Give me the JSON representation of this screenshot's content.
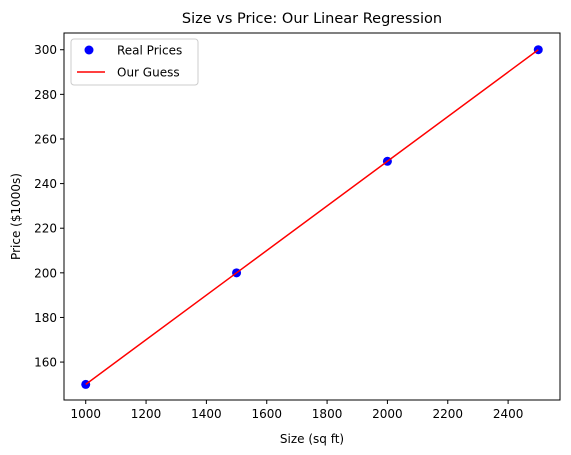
{
  "chart_data": {
    "type": "scatter",
    "title": "Size vs Price: Our Linear Regression",
    "xlabel": "Size (sq ft)",
    "ylabel": "Price ($1000s)",
    "xlim": [
      928,
      2572
    ],
    "ylim": [
      143,
      307.5
    ],
    "xticks": [
      1000,
      1200,
      1400,
      1600,
      1800,
      2000,
      2200,
      2400
    ],
    "yticks": [
      160,
      180,
      200,
      220,
      240,
      260,
      280,
      300
    ],
    "grid": false,
    "legend_position": "top-left",
    "series": [
      {
        "name": "Real Prices",
        "kind": "scatter",
        "color": "#0000ff",
        "x": [
          1000,
          1500,
          2000,
          2500
        ],
        "y": [
          150,
          200,
          250,
          300
        ]
      },
      {
        "name": "Our Guess",
        "kind": "line",
        "color": "#ff0000",
        "x": [
          1000,
          1500,
          2000,
          2500
        ],
        "y": [
          150,
          200,
          250,
          300
        ]
      }
    ]
  }
}
